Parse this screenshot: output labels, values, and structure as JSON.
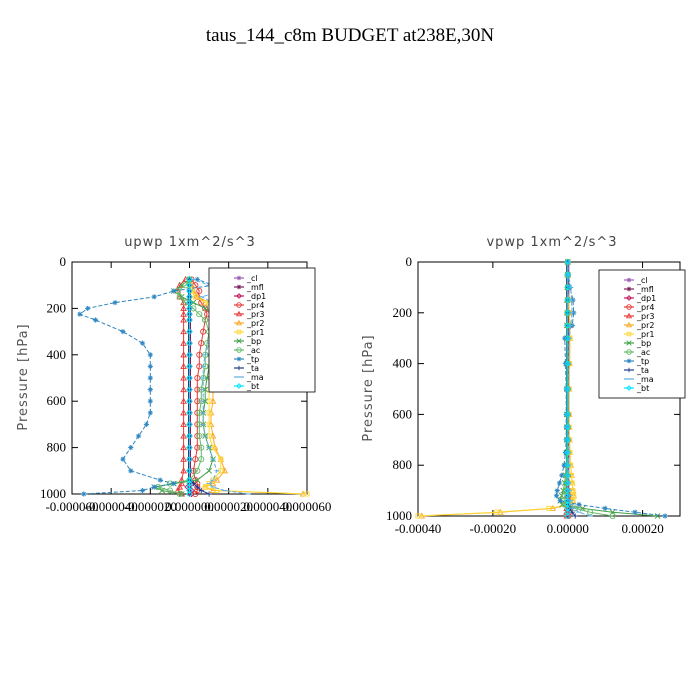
{
  "page_title": "taus_144_c8m  BUDGET at238E,30N",
  "colors": {
    "cl": "#9b59b6",
    "mfl": "#7b1f5c",
    "dp1": "#c2185b",
    "pr4": "#e53935",
    "pr3": "#e53935",
    "pr2": "#f9a825",
    "pr1": "#fdd835",
    "bp": "#43a047",
    "ac": "#66bb6a",
    "tp": "#2e86c1",
    "ta": "#1e3a8a",
    "ma": "#5dade2",
    "bt": "#00e5ff"
  },
  "chart_data": [
    {
      "type": "line",
      "title": "upwp  1xm^2/s^3",
      "xlabel": "",
      "ylabel": "Pressure [hPa]",
      "xlim": [
        -6e-05,
        6e-05
      ],
      "ylim": [
        1000,
        0
      ],
      "y_inverted": true,
      "xticks": [
        -6e-05,
        -4e-05,
        -2e-05,
        0.0,
        2e-05,
        4e-05,
        6e-05
      ],
      "xtick_labels": [
        "-0.000060",
        "-0.000040",
        "-0.000020",
        "0.000000",
        "0.000020",
        "0.000040",
        "0.000060"
      ],
      "yticks": [
        0,
        200,
        400,
        600,
        800,
        1000
      ],
      "ytick_labels": [
        "0",
        "200",
        "400",
        "600",
        "800",
        "1000"
      ],
      "grid": false,
      "legend": "top-right",
      "legend_entries": [
        "_cl",
        "_mfl",
        "_dp1",
        "_pr4",
        "_pr3",
        "_pr2",
        "_pr1",
        "_bp",
        "_ac",
        "_tp",
        "_ta",
        "_ma",
        "_bt"
      ],
      "pressure": [
        1000,
        985,
        970,
        955,
        940,
        900,
        850,
        800,
        750,
        700,
        650,
        600,
        550,
        500,
        450,
        400,
        350,
        300,
        250,
        225,
        200,
        175,
        150,
        125,
        100,
        75
      ],
      "series": [
        {
          "name": "_cl",
          "color_key": "cl",
          "values": [
            0,
            0,
            0,
            0,
            0,
            0,
            0,
            0,
            0,
            0,
            0,
            0,
            0,
            0,
            0,
            0,
            0,
            0,
            0,
            0,
            0,
            0,
            0,
            0,
            0,
            0
          ]
        },
        {
          "name": "_mfl",
          "color_key": "mfl",
          "values": [
            0,
            0,
            0,
            0,
            0,
            0,
            0,
            0,
            0,
            0,
            0,
            0,
            0,
            0,
            0,
            0,
            0,
            0,
            0,
            0,
            0,
            0,
            0,
            0,
            0,
            0
          ]
        },
        {
          "name": "_dp1",
          "color_key": "dp1",
          "values": [
            1e-06,
            1e-06,
            -1e-06,
            1e-06,
            0,
            0,
            0,
            0,
            0,
            0,
            0,
            0,
            0,
            0,
            0,
            0,
            0,
            0,
            0,
            0,
            0,
            0,
            0,
            0,
            0,
            0
          ]
        },
        {
          "name": "_pr4",
          "color_key": "pr4",
          "values": [
            3e-06,
            4e-06,
            4e-06,
            4e-06,
            3e-06,
            2e-06,
            3e-06,
            4e-06,
            4e-06,
            4e-06,
            4e-06,
            4e-06,
            4e-06,
            4e-06,
            5e-06,
            5e-06,
            6e-06,
            7e-06,
            8e-06,
            9e-06,
            8e-06,
            6e-06,
            4e-06,
            5e-06,
            3e-06,
            1e-06
          ]
        },
        {
          "name": "_pr3",
          "color_key": "pr3",
          "values": [
            -4e-06,
            -6e-06,
            -5e-06,
            -4e-06,
            -4e-06,
            -3e-06,
            -3e-06,
            -3e-06,
            -3e-06,
            -3e-06,
            -3e-06,
            -3e-06,
            -3e-06,
            -3e-06,
            -3e-06,
            -3e-06,
            -3e-06,
            -3e-06,
            -3e-06,
            -3e-06,
            -3e-06,
            -3e-06,
            -5e-06,
            -6e-06,
            -5e-06,
            -2e-06
          ]
        },
        {
          "name": "_pr2",
          "color_key": "pr2",
          "values": [
            5.8e-05,
            1.2e-05,
            8e-06,
            1.2e-05,
            1.4e-05,
            1.8e-05,
            1.6e-05,
            1.3e-05,
            1.2e-05,
            1.1e-05,
            1.1e-05,
            1.2e-05,
            1.2e-05,
            1.3e-05,
            1.3e-05,
            1.4e-05,
            1.6e-05,
            2e-05,
            2.2e-05,
            2e-05,
            1.6e-05,
            1e-05,
            4e-06,
            2e-06,
            1e-06,
            0
          ]
        },
        {
          "name": "_pr1",
          "color_key": "pr1",
          "values": [
            6e-05,
            1.4e-05,
            8e-06,
            1e-05,
            1.2e-05,
            1.6e-05,
            1.6e-05,
            1.2e-05,
            1e-05,
            1e-05,
            1e-05,
            1e-05,
            1e-05,
            1.1e-05,
            1.1e-05,
            1.2e-05,
            1.4e-05,
            1.7e-05,
            1.8e-05,
            1.7e-05,
            1.3e-05,
            8e-06,
            3e-06,
            1e-06,
            0,
            0
          ]
        },
        {
          "name": "_bp",
          "color_key": "bp",
          "values": [
            -4e-06,
            -1.4e-05,
            -1.8e-05,
            -8e-06,
            4e-06,
            1e-05,
            1.2e-05,
            1e-05,
            8e-06,
            7e-06,
            7e-06,
            8e-06,
            8e-06,
            9e-06,
            1e-05,
            1e-05,
            1.2e-05,
            1.4e-05,
            1.6e-05,
            1.3e-05,
            8e-06,
            2e-06,
            -4e-06,
            -8e-06,
            -4e-06,
            0
          ]
        },
        {
          "name": "_ac",
          "color_key": "ac",
          "values": [
            -5e-06,
            -1e-05,
            -1.6e-05,
            -1e-05,
            0,
            4e-06,
            6e-06,
            6e-06,
            5e-06,
            5e-06,
            5e-06,
            6e-06,
            6e-06,
            7e-06,
            8e-06,
            8e-06,
            9e-06,
            1e-05,
            8e-06,
            5e-06,
            2e-06,
            -2e-06,
            -5e-06,
            -6e-06,
            -2e-06,
            0
          ]
        },
        {
          "name": "_tp",
          "color_key": "tp",
          "values": [
            -5.4e-05,
            -2.4e-05,
            -1.8e-05,
            -8e-06,
            -1.5e-05,
            -3e-05,
            -3.4e-05,
            -3e-05,
            -2.6e-05,
            -2.2e-05,
            -2e-05,
            -2e-05,
            -2e-05,
            -2e-05,
            -2e-05,
            -2e-05,
            -2.4e-05,
            -3.4e-05,
            -4.8e-05,
            -5.6e-05,
            -5.2e-05,
            -3.8e-05,
            -1.8e-05,
            -8e-06,
            1.2e-05,
            4e-06
          ]
        },
        {
          "name": "_ta",
          "color_key": "ta",
          "values": [
            1e-05,
            6e-06,
            4e-06,
            2e-06,
            0,
            0,
            0,
            0,
            0,
            0,
            0,
            0,
            0,
            0,
            0,
            0,
            0,
            0,
            0,
            0,
            0,
            0,
            0,
            0,
            0,
            0
          ]
        },
        {
          "name": "_ma",
          "color_key": "ma",
          "values": [
            3e-05,
            1.8e-05,
            1.2e-05,
            1e-05,
            1.2e-05,
            1.4e-05,
            1.2e-05,
            1e-05,
            8e-06,
            7e-06,
            7e-06,
            7e-06,
            7e-06,
            7e-06,
            7e-06,
            8e-06,
            1e-05,
            1.3e-05,
            1.8e-05,
            2e-05,
            1.8e-05,
            1.2e-05,
            6e-06,
            1.8e-05,
            1e-05,
            2e-06
          ]
        },
        {
          "name": "_bt",
          "color_key": "bt",
          "values": [
            0,
            0,
            0,
            0,
            0,
            0,
            0,
            0,
            0,
            0,
            0,
            0,
            0,
            0,
            0,
            0,
            0,
            0,
            0,
            0,
            0,
            0,
            0,
            0,
            0,
            0
          ]
        }
      ]
    },
    {
      "type": "line",
      "title": "vpwp  1xm^2/s^3",
      "xlabel": "",
      "ylabel": "Pressure [hPa]",
      "xlim": [
        -0.0004,
        0.0003
      ],
      "ylim": [
        1000,
        0
      ],
      "y_inverted": true,
      "xticks": [
        -0.0004,
        -0.0002,
        0.0,
        0.0002
      ],
      "xtick_labels": [
        "-0.00040",
        "-0.00020",
        "0.00000",
        "0.00020"
      ],
      "yticks": [
        0,
        200,
        400,
        600,
        800,
        1000
      ],
      "ytick_labels": [
        "0",
        "200",
        "400",
        "600",
        "800",
        "1000"
      ],
      "grid": false,
      "legend": "top-right",
      "legend_entries": [
        "_cl",
        "_mfl",
        "_dp1",
        "_pr4",
        "_pr3",
        "_pr2",
        "_pr1",
        "_bp",
        "_ac",
        "_tp",
        "_ta",
        "_ma",
        "_bt"
      ],
      "pressure": [
        1000,
        985,
        970,
        955,
        940,
        920,
        900,
        870,
        840,
        800,
        750,
        700,
        650,
        600,
        500,
        400,
        300,
        250,
        200,
        150,
        100,
        50,
        0
      ],
      "series": [
        {
          "name": "_cl",
          "color_key": "cl",
          "values": [
            0,
            0,
            0,
            0,
            0,
            0,
            0,
            0,
            0,
            0,
            0,
            0,
            0,
            0,
            0,
            0,
            0,
            0,
            0,
            0,
            0,
            0,
            0
          ]
        },
        {
          "name": "_mfl",
          "color_key": "mfl",
          "values": [
            0,
            0,
            0,
            0,
            0,
            0,
            0,
            0,
            0,
            0,
            0,
            0,
            0,
            0,
            0,
            0,
            0,
            0,
            0,
            0,
            0,
            0,
            0
          ]
        },
        {
          "name": "_dp1",
          "color_key": "dp1",
          "values": [
            0,
            0,
            0,
            0,
            0,
            0,
            0,
            0,
            0,
            0,
            0,
            0,
            0,
            0,
            0,
            0,
            0,
            0,
            0,
            0,
            0,
            0,
            0
          ]
        },
        {
          "name": "_pr4",
          "color_key": "pr4",
          "values": [
            2e-06,
            3e-06,
            3e-06,
            2e-06,
            2e-06,
            2e-06,
            2e-06,
            1e-06,
            1e-06,
            1e-06,
            1e-06,
            1e-06,
            1e-06,
            1e-06,
            1e-06,
            1e-06,
            1e-06,
            1e-06,
            1e-06,
            1e-06,
            0,
            0,
            0
          ]
        },
        {
          "name": "_pr3",
          "color_key": "pr3",
          "values": [
            -2e-06,
            -3e-06,
            -3e-06,
            -2e-06,
            -2e-06,
            -2e-06,
            -2e-06,
            -1e-06,
            -1e-06,
            -1e-06,
            -1e-06,
            -1e-06,
            -1e-06,
            -1e-06,
            -1e-06,
            -1e-06,
            -1e-06,
            -1e-06,
            -1e-06,
            -1e-06,
            0,
            0,
            0
          ]
        },
        {
          "name": "_pr2",
          "color_key": "pr2",
          "values": [
            -0.00039,
            -0.00018,
            -4e-05,
            8e-06,
            1.4e-05,
            1.6e-05,
            1.4e-05,
            1.2e-05,
            1e-05,
            8e-06,
            6e-06,
            5e-06,
            4e-06,
            4e-06,
            4e-06,
            5e-06,
            6e-06,
            6e-06,
            4e-06,
            2e-06,
            0,
            0,
            0
          ]
        },
        {
          "name": "_pr1",
          "color_key": "pr1",
          "values": [
            -0.0004,
            -0.00019,
            -5e-05,
            8e-06,
            1.4e-05,
            1.6e-05,
            1.4e-05,
            1.2e-05,
            1e-05,
            8e-06,
            6e-06,
            5e-06,
            4e-06,
            4e-06,
            4e-06,
            5e-06,
            6e-06,
            6e-06,
            4e-06,
            2e-06,
            0,
            0,
            0
          ]
        },
        {
          "name": "_bp",
          "color_key": "bp",
          "values": [
            0.00024,
            0.00012,
            4e-05,
            -1.5e-05,
            -2e-05,
            -1.6e-05,
            -1.2e-05,
            -8e-06,
            -6e-06,
            -4e-06,
            -3e-06,
            -2e-06,
            -2e-06,
            -2e-06,
            -2e-06,
            -2e-06,
            -2e-06,
            -2e-06,
            -1e-06,
            -1e-06,
            0,
            0,
            0
          ]
        },
        {
          "name": "_ac",
          "color_key": "ac",
          "values": [
            0.00012,
            6e-05,
            2e-05,
            -8e-06,
            -1e-05,
            -8e-06,
            -6e-06,
            -4e-06,
            -3e-06,
            -2e-06,
            -2e-06,
            -1e-06,
            -1e-06,
            -1e-06,
            -1e-06,
            -1e-06,
            -1e-06,
            -1e-06,
            -1e-06,
            0,
            0,
            0,
            0
          ]
        },
        {
          "name": "_tp",
          "color_key": "tp",
          "values": [
            0.00026,
            0.00018,
            0.0001,
            3e-05,
            -2e-05,
            -3e-05,
            -2.8e-05,
            -2.2e-05,
            -1.6e-05,
            -1e-05,
            -6e-06,
            -4e-06,
            -4e-06,
            -4e-06,
            -4e-06,
            -6e-06,
            -8e-06,
            1.2e-05,
            1.6e-05,
            1.4e-05,
            6e-06,
            2e-06,
            0
          ]
        },
        {
          "name": "_ta",
          "color_key": "ta",
          "values": [
            2e-05,
            1.2e-05,
            6e-06,
            2e-06,
            0,
            0,
            0,
            0,
            0,
            0,
            0,
            0,
            0,
            0,
            0,
            0,
            0,
            0,
            0,
            0,
            0,
            0,
            0
          ]
        },
        {
          "name": "_ma",
          "color_key": "ma",
          "values": [
            6e-05,
            3e-05,
            1.6e-05,
            1e-05,
            8e-06,
            6e-06,
            4e-06,
            3e-06,
            2e-06,
            2e-06,
            2e-06,
            2e-06,
            2e-06,
            2e-06,
            2e-06,
            3e-06,
            4e-06,
            8e-06,
            1.2e-05,
            1e-05,
            8e-06,
            2e-06,
            0
          ]
        },
        {
          "name": "_bt",
          "color_key": "bt",
          "values": [
            0,
            0,
            0,
            0,
            0,
            0,
            0,
            0,
            0,
            0,
            0,
            0,
            0,
            0,
            0,
            0,
            0,
            0,
            0,
            0,
            0,
            0,
            0
          ]
        }
      ]
    }
  ]
}
